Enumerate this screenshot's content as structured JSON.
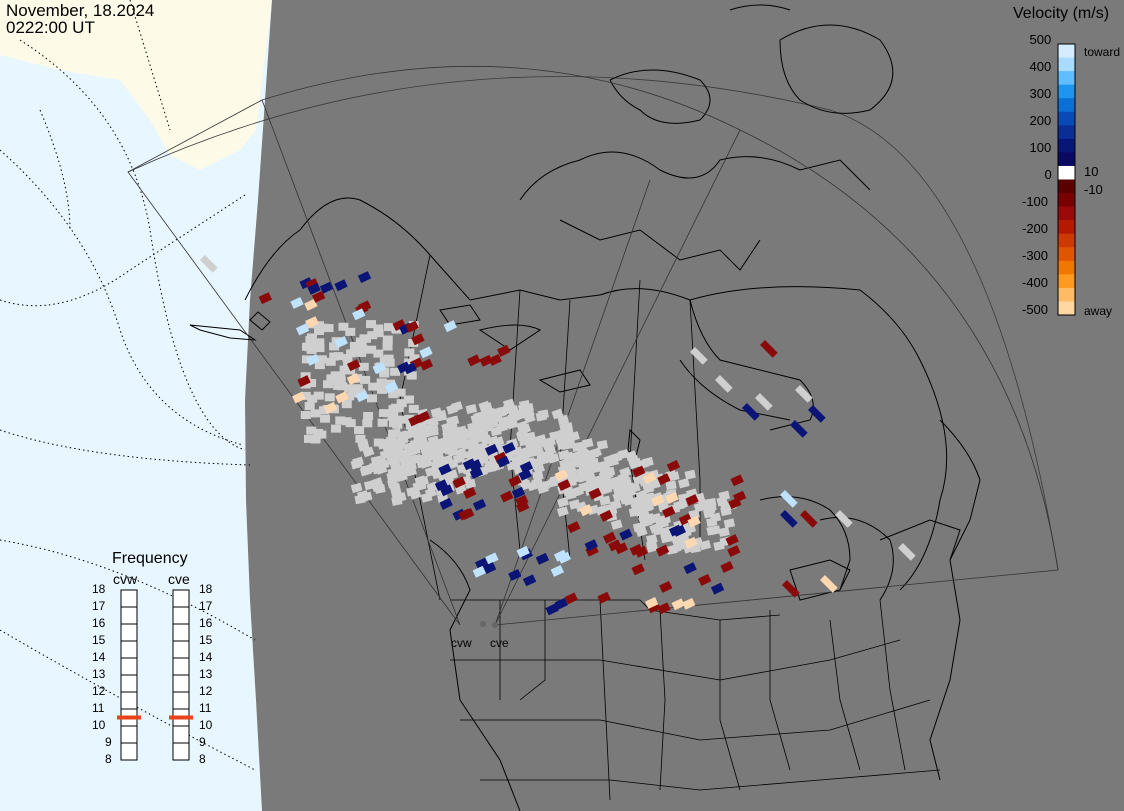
{
  "header": {
    "date": "November, 18.2024",
    "time": "0222:00 UT"
  },
  "velocity_scale": {
    "title": "Velocity (m/s)",
    "toward_label": "toward",
    "away_label": "away",
    "ticks": [
      "500",
      "400",
      "300",
      "200",
      "100",
      "10",
      "0",
      "-10",
      "-100",
      "-200",
      "-300",
      "-400",
      "-500"
    ],
    "colors": [
      "#d5ecff",
      "#a9dbff",
      "#60bdff",
      "#1e96f0",
      "#0b6fd6",
      "#0a4ab6",
      "#0a2e95",
      "#071677",
      "#0a0a60",
      "#ffffff",
      "#5a0000",
      "#7a0000",
      "#9a0a0a",
      "#b51a00",
      "#cc3a00",
      "#e05500",
      "#f07700",
      "#ff9a20",
      "#ffbb66",
      "#ffd7a3"
    ]
  },
  "frequency": {
    "title": "Frequency",
    "radars": [
      "cvw",
      "cve"
    ],
    "ticks": [
      "18",
      "17",
      "16",
      "15",
      "14",
      "13",
      "12",
      "11",
      "10",
      "9",
      "8"
    ],
    "range": [
      8,
      18
    ],
    "cvw_mhz": 10.5,
    "cve_mhz": 10.5,
    "marker_color": "#e8431a"
  },
  "map": {
    "background": "#7a7a7a",
    "ocean": "#e8f6ff",
    "ice": "#fdfbe8",
    "scatter_gray": "#cfcfcf",
    "radar_labels": [
      "cvw",
      "cve"
    ]
  }
}
